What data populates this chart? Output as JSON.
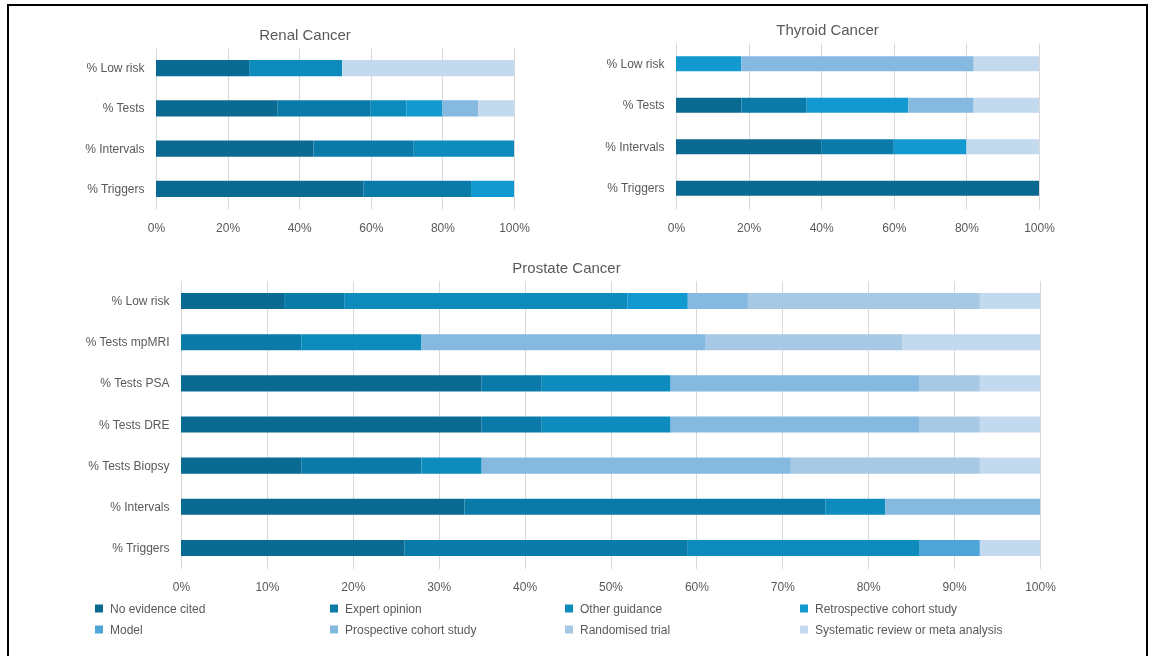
{
  "chart_data": [
    {
      "type": "bar",
      "orientation": "horizontal",
      "stacked": true,
      "title": "Renal Cancer",
      "categories": [
        "% Low risk",
        "% Tests",
        "% Intervals",
        "% Triggers"
      ],
      "series": [
        {
          "color": "#0b6a91",
          "values": [
            26,
            34,
            44,
            58
          ]
        },
        {
          "color": "#0a7aa8",
          "values": [
            null,
            26,
            28,
            30
          ]
        },
        {
          "color": "#0e8bbd",
          "values": [
            26,
            10,
            28,
            null
          ]
        },
        {
          "color": "#1199d0",
          "values": [
            null,
            10,
            null,
            12
          ]
        },
        {
          "color": "#85b9e0",
          "values": [
            null,
            10,
            null,
            null
          ]
        },
        {
          "color": "#c3d9ee",
          "values": [
            48,
            10,
            null,
            null
          ]
        }
      ],
      "xlim": [
        0,
        100
      ],
      "xticks": [
        {
          "value": 0,
          "label": "0%"
        },
        {
          "value": 20,
          "label": "20%"
        },
        {
          "value": 40,
          "label": "40%"
        },
        {
          "value": 60,
          "label": "60%"
        },
        {
          "value": 80,
          "label": "80%"
        },
        {
          "value": 100,
          "label": "100%"
        }
      ],
      "grid": "x"
    },
    {
      "type": "bar",
      "orientation": "horizontal",
      "stacked": true,
      "title": "Thyroid Cancer",
      "categories": [
        "% Low risk",
        "% Tests",
        "% Intervals",
        "% Triggers"
      ],
      "series": [
        {
          "color": "#0b6a91",
          "values": [
            null,
            18,
            40,
            100
          ]
        },
        {
          "color": "#0a7aa8",
          "values": [
            null,
            18,
            20,
            null
          ]
        },
        {
          "color": "#1199d0",
          "values": [
            18,
            28,
            20,
            null
          ]
        },
        {
          "color": "#85b9e0",
          "values": [
            64,
            18,
            null,
            null
          ]
        },
        {
          "color": "#c3d9ee",
          "values": [
            18,
            18,
            20,
            null
          ]
        }
      ],
      "xlim": [
        0,
        100
      ],
      "xticks": [
        {
          "value": 0,
          "label": "0%"
        },
        {
          "value": 20,
          "label": "20%"
        },
        {
          "value": 40,
          "label": "40%"
        },
        {
          "value": 60,
          "label": "60%"
        },
        {
          "value": 80,
          "label": "80%"
        },
        {
          "value": 100,
          "label": "100%"
        }
      ],
      "grid": "x"
    },
    {
      "type": "bar",
      "orientation": "horizontal",
      "stacked": true,
      "title": "Prostate Cancer",
      "categories": [
        "% Low risk",
        "% Tests mpMRI",
        "% Tests PSA",
        "% Tests DRE",
        "% Tests Biopsy",
        "% Intervals",
        "% Triggers"
      ],
      "series": [
        {
          "name": "No evidence cited",
          "color": "#0b6a91",
          "values": [
            12,
            null,
            35,
            35,
            14,
            33,
            26
          ]
        },
        {
          "name": "Expert opinion",
          "color": "#0a7aa8",
          "values": [
            7,
            14,
            7,
            7,
            14,
            42,
            33
          ]
        },
        {
          "name": "Other guidance",
          "color": "#0e8bbd",
          "values": [
            33,
            14,
            15,
            15,
            7,
            7,
            27
          ]
        },
        {
          "name": "Retrospective cohort study",
          "color": "#1199d0",
          "values": [
            7,
            null,
            null,
            null,
            null,
            null,
            null
          ]
        },
        {
          "name": "Model",
          "color": "#4ea6d8",
          "values": [
            null,
            null,
            null,
            null,
            null,
            null,
            7
          ]
        },
        {
          "name": "Prospective cohort study",
          "color": "#85b9e0",
          "values": [
            7,
            33,
            29,
            29,
            36,
            18,
            null
          ]
        },
        {
          "name": "Randomised trial",
          "color": "#a8c9e6",
          "values": [
            27,
            23,
            7,
            7,
            22,
            null,
            null
          ]
        },
        {
          "name": "Systematic review or meta analysis",
          "color": "#c3d9ee",
          "values": [
            7,
            16,
            7,
            7,
            7,
            null,
            7
          ]
        }
      ],
      "xlim": [
        0,
        100
      ],
      "xticks": [
        {
          "value": 0,
          "label": "0%"
        },
        {
          "value": 10,
          "label": "10%"
        },
        {
          "value": 20,
          "label": "20%"
        },
        {
          "value": 30,
          "label": "30%"
        },
        {
          "value": 40,
          "label": "40%"
        },
        {
          "value": 50,
          "label": "50%"
        },
        {
          "value": 60,
          "label": "60%"
        },
        {
          "value": 70,
          "label": "70%"
        },
        {
          "value": 80,
          "label": "80%"
        },
        {
          "value": 90,
          "label": "90%"
        },
        {
          "value": 100,
          "label": "100%"
        }
      ],
      "grid": "x",
      "legend": "bottom"
    }
  ]
}
